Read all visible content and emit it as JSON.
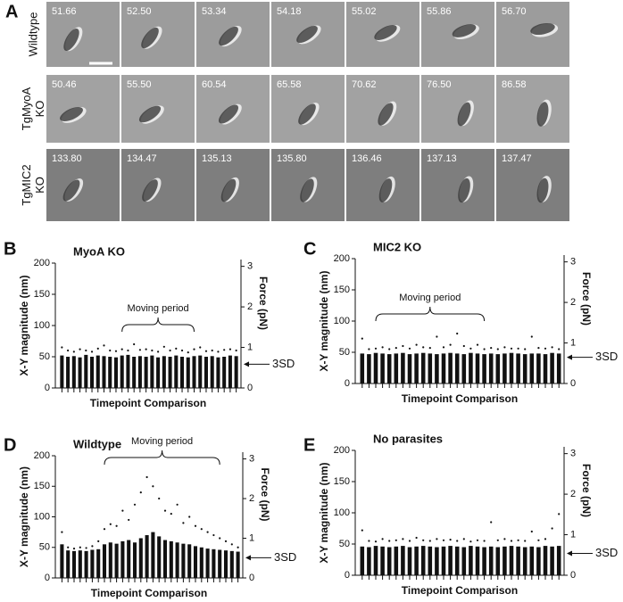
{
  "panel_a": {
    "label": "A",
    "rows": [
      {
        "lines": [
          "Wildtype"
        ],
        "times": [
          "51.66",
          "52.50",
          "53.34",
          "54.18",
          "55.02",
          "55.86",
          "56.70"
        ]
      },
      {
        "lines": [
          "TgMyoA",
          "KO"
        ],
        "times": [
          "50.46",
          "55.50",
          "60.54",
          "65.58",
          "70.62",
          "76.50",
          "86.58"
        ]
      },
      {
        "lines": [
          "TgMIC2",
          "KO"
        ],
        "times": [
          "133.80",
          "134.47",
          "135.13",
          "135.80",
          "136.46",
          "137.13",
          "137.47"
        ]
      }
    ]
  },
  "chart_data": [
    {
      "type": "bar",
      "panel": "B",
      "title": "MyoA KO",
      "xlabel": "Timepoint Comparison",
      "ylabel": "X-Y magnitude (nm)",
      "y2label": "Force (pN)",
      "categories": [
        null,
        null,
        null,
        null,
        null,
        null,
        null,
        null,
        null,
        null,
        null,
        null,
        null,
        null,
        null,
        null,
        null,
        null,
        null,
        null,
        null,
        null,
        null,
        null,
        null,
        null,
        null,
        null,
        null,
        null
      ],
      "values": [
        52,
        50,
        51,
        49,
        53,
        50,
        52,
        51,
        50,
        49,
        52,
        53,
        50,
        51,
        50,
        52,
        49,
        51,
        50,
        52,
        50,
        49,
        51,
        52,
        50,
        51,
        49,
        50,
        52,
        51
      ],
      "maxima": [
        65,
        60,
        58,
        62,
        60,
        58,
        63,
        68,
        60,
        59,
        62,
        60,
        70,
        61,
        62,
        60,
        58,
        66,
        60,
        63,
        60,
        57,
        62,
        65,
        59,
        60,
        58,
        61,
        62,
        60
      ],
      "ylim": [
        0,
        200
      ],
      "yticks": [
        0,
        50,
        100,
        150,
        200
      ],
      "y2lim": [
        0,
        3.08
      ],
      "y2ticks": [
        0,
        1,
        2,
        3
      ],
      "moving_period": {
        "text": "Moving period",
        "start": 10,
        "end": 22
      },
      "threshold": {
        "text": "3SD",
        "value": 38
      }
    },
    {
      "type": "bar",
      "panel": "C",
      "title": "MIC2 KO",
      "xlabel": "Timepoint Comparison",
      "ylabel": "X-Y magnitude (nm)",
      "y2label": "Force (pN)",
      "categories": [
        null,
        null,
        null,
        null,
        null,
        null,
        null,
        null,
        null,
        null,
        null,
        null,
        null,
        null,
        null,
        null,
        null,
        null,
        null,
        null,
        null,
        null,
        null,
        null,
        null,
        null,
        null,
        null,
        null,
        null
      ],
      "values": [
        48,
        47,
        49,
        48,
        47,
        48,
        49,
        47,
        48,
        49,
        48,
        47,
        48,
        49,
        48,
        47,
        49,
        48,
        47,
        48,
        47,
        48,
        49,
        48,
        47,
        48,
        48,
        47,
        49,
        48
      ],
      "maxima": [
        72,
        55,
        56,
        58,
        55,
        57,
        60,
        56,
        62,
        58,
        57,
        75,
        58,
        62,
        80,
        60,
        56,
        62,
        55,
        57,
        55,
        58,
        56,
        56,
        55,
        75,
        57,
        56,
        58,
        55
      ],
      "ylim": [
        0,
        200
      ],
      "yticks": [
        0,
        50,
        100,
        150,
        200
      ],
      "y2lim": [
        0,
        3.08
      ],
      "y2ticks": [
        0,
        1,
        2,
        3
      ],
      "moving_period": {
        "text": "Moving period",
        "start": 2,
        "end": 18
      },
      "threshold": {
        "text": "3SD",
        "value": 42
      }
    },
    {
      "type": "bar",
      "panel": "D",
      "title": "Wildtype",
      "xlabel": "Timepoint Comparison",
      "ylabel": "X-Y magnitude (nm)",
      "y2label": "Force (pN)",
      "categories": [
        null,
        null,
        null,
        null,
        null,
        null,
        null,
        null,
        null,
        null,
        null,
        null,
        null,
        null,
        null,
        null,
        null,
        null,
        null,
        null,
        null,
        null,
        null,
        null,
        null,
        null,
        null,
        null,
        null,
        null
      ],
      "values": [
        55,
        45,
        44,
        45,
        44,
        46,
        47,
        55,
        58,
        56,
        60,
        62,
        58,
        65,
        70,
        75,
        68,
        62,
        60,
        58,
        56,
        55,
        52,
        50,
        48,
        47,
        46,
        45,
        44,
        43
      ],
      "maxima": [
        75,
        50,
        48,
        50,
        49,
        52,
        60,
        80,
        88,
        85,
        110,
        95,
        120,
        140,
        165,
        150,
        130,
        110,
        105,
        120,
        90,
        100,
        85,
        80,
        75,
        70,
        65,
        60,
        55,
        50
      ],
      "ylim": [
        0,
        200
      ],
      "yticks": [
        0,
        50,
        100,
        150,
        200
      ],
      "y2lim": [
        0,
        3.08
      ],
      "y2ticks": [
        0,
        1,
        2,
        3
      ],
      "moving_period": {
        "text": "Moving period",
        "start": 7,
        "end": 26
      },
      "threshold": {
        "text": "3SD",
        "value": 33
      }
    },
    {
      "type": "bar",
      "panel": "E",
      "title": "No parasites",
      "xlabel": "Timepoint Comparison",
      "ylabel": "X-Y magnitude (nm)",
      "y2label": "Force (pN)",
      "categories": [
        null,
        null,
        null,
        null,
        null,
        null,
        null,
        null,
        null,
        null,
        null,
        null,
        null,
        null,
        null,
        null,
        null,
        null,
        null,
        null,
        null,
        null,
        null,
        null,
        null,
        null,
        null,
        null,
        null,
        null
      ],
      "values": [
        46,
        45,
        47,
        46,
        45,
        46,
        47,
        45,
        46,
        47,
        46,
        45,
        46,
        47,
        46,
        45,
        47,
        46,
        45,
        46,
        45,
        46,
        47,
        46,
        45,
        46,
        45,
        47,
        46,
        47
      ],
      "maxima": [
        72,
        55,
        54,
        58,
        55,
        56,
        58,
        55,
        60,
        56,
        55,
        58,
        56,
        57,
        55,
        58,
        54,
        56,
        55,
        85,
        56,
        58,
        55,
        56,
        55,
        70,
        56,
        58,
        75,
        98
      ],
      "ylim": [
        0,
        200
      ],
      "yticks": [
        0,
        50,
        100,
        150,
        200
      ],
      "y2lim": [
        0,
        3.08
      ],
      "y2ticks": [
        0,
        1,
        2,
        3
      ],
      "threshold": {
        "text": "3SD",
        "value": 35
      }
    }
  ]
}
